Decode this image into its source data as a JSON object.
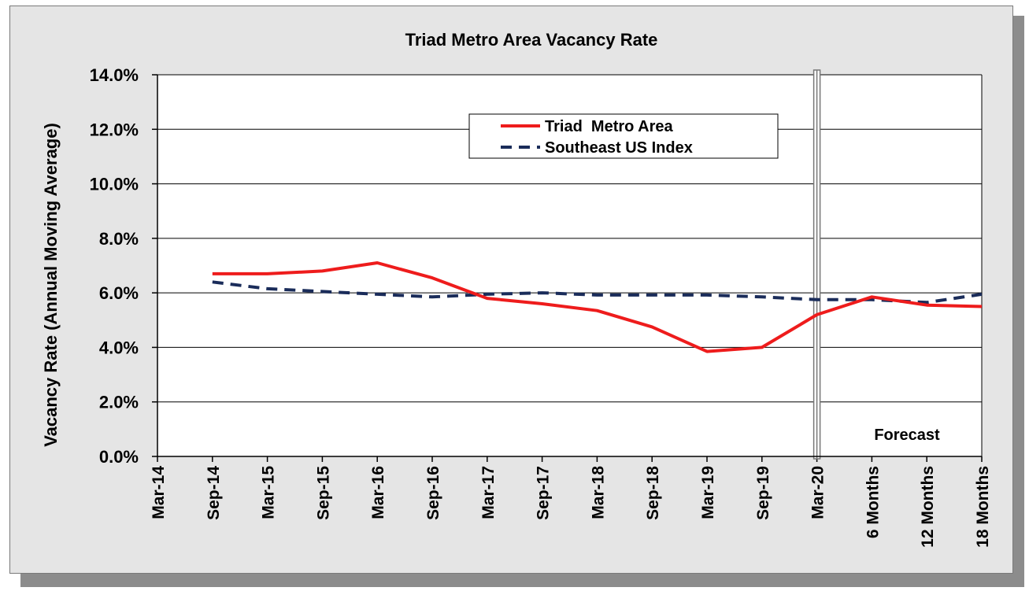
{
  "chart_data": {
    "type": "line",
    "title": "Triad Metro Area Vacancy Rate",
    "ylabel": "Vacancy Rate (Annual Moving Average)",
    "xlabel": "",
    "categories": [
      "Mar-14",
      "Sep-14",
      "Mar-15",
      "Sep-15",
      "Mar-16",
      "Sep-16",
      "Mar-17",
      "Sep-17",
      "Mar-18",
      "Sep-18",
      "Mar-19",
      "Sep-19",
      "Mar-20",
      "6 Months",
      "12 Months",
      "18 Months"
    ],
    "ylim": [
      0,
      14
    ],
    "yticks": [
      0,
      2,
      4,
      6,
      8,
      10,
      12,
      14
    ],
    "ytick_labels": [
      "0.0%",
      "2.0%",
      "4.0%",
      "6.0%",
      "8.0%",
      "10.0%",
      "12.0%",
      "14.0%"
    ],
    "grid": "horizontal",
    "legend_position": "top-center",
    "forecast_divider_category": "Mar-20",
    "annotation": "Forecast",
    "series": [
      {
        "name": "Triad  Metro Area",
        "style": "solid",
        "color": "#ee1c1c",
        "values": [
          null,
          6.7,
          6.7,
          6.8,
          7.1,
          6.55,
          5.8,
          5.6,
          5.35,
          4.75,
          3.85,
          4.0,
          5.2,
          5.85,
          5.55,
          5.5
        ]
      },
      {
        "name": "Southeast US Index",
        "style": "dashed",
        "color": "#1a2c5a",
        "values": [
          null,
          6.4,
          6.15,
          6.05,
          5.95,
          5.85,
          5.95,
          6.0,
          5.92,
          5.92,
          5.92,
          5.85,
          5.75,
          5.75,
          5.65,
          5.95
        ]
      }
    ]
  }
}
